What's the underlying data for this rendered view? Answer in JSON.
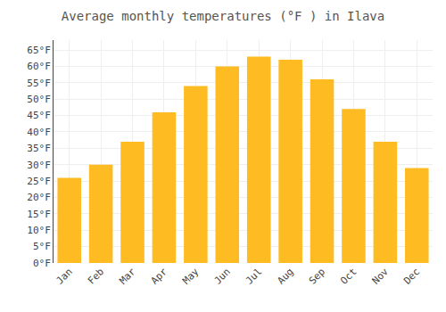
{
  "chart_data": {
    "type": "bar",
    "title": "Average monthly temperatures (°F ) in Ilava",
    "categories": [
      "Jan",
      "Feb",
      "Mar",
      "Apr",
      "May",
      "Jun",
      "Jul",
      "Aug",
      "Sep",
      "Oct",
      "Nov",
      "Dec"
    ],
    "values": [
      26,
      30,
      37,
      46,
      54,
      60,
      63,
      62,
      56,
      47,
      37,
      29
    ],
    "color": "#FFBB22",
    "ylim": [
      0,
      68
    ],
    "yticks": [
      {
        "value": 0,
        "label": "0°F"
      },
      {
        "value": 5,
        "label": "5°F"
      },
      {
        "value": 10,
        "label": "10°F"
      },
      {
        "value": 15,
        "label": "15°F"
      },
      {
        "value": 20,
        "label": "20°F"
      },
      {
        "value": 25,
        "label": "25°F"
      },
      {
        "value": 30,
        "label": "30°F"
      },
      {
        "value": 35,
        "label": "35°F"
      },
      {
        "value": 40,
        "label": "40°F"
      },
      {
        "value": 45,
        "label": "45°F"
      },
      {
        "value": 50,
        "label": "50°F"
      },
      {
        "value": 55,
        "label": "55°F"
      },
      {
        "value": 60,
        "label": "60°F"
      },
      {
        "value": 65,
        "label": "65°F"
      }
    ],
    "grid": true
  }
}
